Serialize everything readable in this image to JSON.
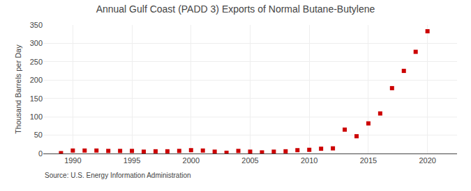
{
  "chart_data": {
    "type": "scatter",
    "title": "Annual Gulf Coast (PADD 3) Exports of Normal Butane-Butylene",
    "ylabel": "Thousand Barrels per Day",
    "annotations": [
      "Source: U.S. Energy Information Administration"
    ],
    "x": [
      1989,
      1990,
      1991,
      1992,
      1993,
      1994,
      1995,
      1996,
      1997,
      1998,
      1999,
      2000,
      2001,
      2002,
      2003,
      2004,
      2005,
      2006,
      2007,
      2008,
      2009,
      2010,
      2011,
      2012,
      2013,
      2014,
      2015,
      2016,
      2017,
      2018,
      2019,
      2020
    ],
    "values": [
      1,
      8,
      8,
      8,
      7,
      7,
      7,
      5,
      6,
      6,
      7,
      9,
      8,
      5,
      2,
      7,
      5,
      3,
      5,
      6,
      9,
      10,
      13,
      14,
      65,
      47,
      82,
      109,
      178,
      225,
      277,
      333
    ],
    "color": "#cc0000",
    "marker": "square",
    "xlim": [
      1987.5,
      2022.5
    ],
    "ylim": [
      0,
      350
    ],
    "xticks": [
      1990,
      1995,
      2000,
      2005,
      2010,
      2015,
      2020
    ],
    "yticks": [
      0,
      50,
      100,
      150,
      200,
      250,
      300,
      350
    ],
    "grid": true
  }
}
